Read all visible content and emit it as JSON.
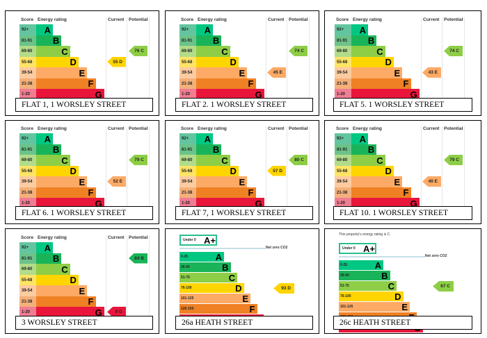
{
  "band_colors": {
    "A": "#00c781",
    "B": "#19b459",
    "C": "#8dce46",
    "D": "#ffd500",
    "E": "#fcaa65",
    "F": "#ef8023",
    "G": "#e9153b"
  },
  "score_colors": {
    "A": "#63c5a0",
    "B": "#6cc38a",
    "C": "#b2dc8a",
    "D": "#ffe466",
    "E": "#fdcba0",
    "F": "#f4b07a",
    "G": "#f17d93"
  },
  "old_scale": {
    "headers": {
      "score": "Score",
      "rating": "Energy rating",
      "current": "Current",
      "potential": "Potential"
    },
    "bands": [
      {
        "band": "A",
        "range": "92+"
      },
      {
        "band": "B",
        "range": "81-91"
      },
      {
        "band": "C",
        "range": "69-80"
      },
      {
        "band": "D",
        "range": "55-68"
      },
      {
        "band": "E",
        "range": "39-54"
      },
      {
        "band": "F",
        "range": "21-38"
      },
      {
        "band": "G",
        "range": "1-20"
      }
    ]
  },
  "new_scale": {
    "aplus": {
      "range": "Under 0",
      "band": "A+"
    },
    "net_zero_label": "Net zero CO2",
    "bands": [
      {
        "band": "A",
        "range": "0-25"
      },
      {
        "band": "B",
        "range": "26-50"
      },
      {
        "band": "C",
        "range": "51-75"
      },
      {
        "band": "D",
        "range": "76-100"
      },
      {
        "band": "E",
        "range": "101-125"
      },
      {
        "band": "F",
        "range": "126-150"
      },
      {
        "band": "G",
        "range": ""
      }
    ]
  },
  "chart_data": [
    {
      "type": "table",
      "title": "FLAT 1, 1 WORSLEY STREET",
      "current": {
        "score": 55,
        "band": "D",
        "label": "55 D"
      },
      "potential": {
        "score": 76,
        "band": "C",
        "label": "76 C"
      }
    },
    {
      "type": "table",
      "title": "FLAT 2. 1 WORSLEY STREET",
      "current": {
        "score": 45,
        "band": "E",
        "label": "45 E"
      },
      "potential": {
        "score": 74,
        "band": "C",
        "label": "74 C"
      }
    },
    {
      "type": "table",
      "title": "FLAT 5. 1 WORSLEY STREET",
      "current": {
        "score": 43,
        "band": "E",
        "label": "43 E"
      },
      "potential": {
        "score": 74,
        "band": "C",
        "label": "74 C"
      }
    },
    {
      "type": "table",
      "title": "FLAT 6. 1 WORSLEY STREET",
      "current": {
        "score": 52,
        "band": "E",
        "label": "52 E"
      },
      "potential": {
        "score": 79,
        "band": "C",
        "label": "79 C"
      }
    },
    {
      "type": "table",
      "title": "FLAT 7, 1 WORSLEY STREET",
      "current": {
        "score": 57,
        "band": "D",
        "label": "57 D"
      },
      "potential": {
        "score": 80,
        "band": "C",
        "label": "80 C"
      }
    },
    {
      "type": "table",
      "title": "FLAT 10. 1 WORSLEY STREET",
      "current": {
        "score": 40,
        "band": "E",
        "label": "40 E"
      },
      "potential": {
        "score": 79,
        "band": "C",
        "label": "79 C"
      }
    },
    {
      "type": "table",
      "title": "3 WORSLEY STREET",
      "current": {
        "score": 9,
        "band": "G",
        "label": "9 G"
      },
      "potential": {
        "score": 84,
        "band": "B",
        "label": "84 B"
      }
    },
    {
      "type": "table",
      "title": "26a HEATH STREET",
      "scale": "new",
      "current": {
        "score": 93,
        "band": "D",
        "label": "93 D"
      }
    },
    {
      "type": "table",
      "title": "26c HEATH STREET",
      "scale": "new",
      "intro": "This property's energy rating is C.",
      "current": {
        "score": 67,
        "band": "C",
        "label": "67 C"
      }
    }
  ]
}
